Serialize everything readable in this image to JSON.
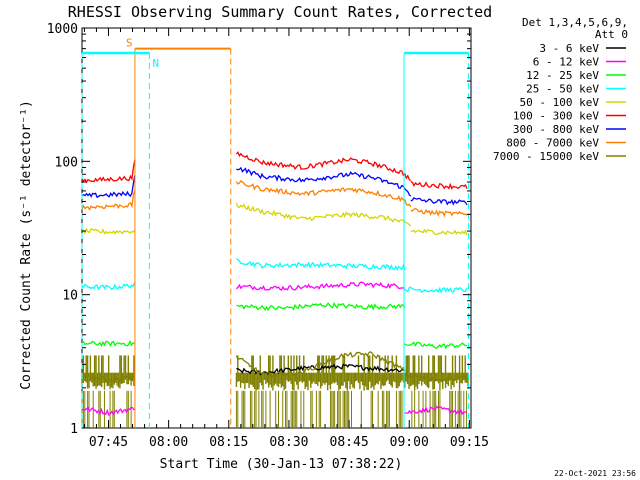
{
  "chart_data": {
    "type": "line",
    "title": "RHESSI Observing Summary Count Rates, Corrected",
    "xlabel": "Start Time (30-Jan-13 07:38:22)",
    "ylabel": "Corrected Count Rate (s⁻¹ detector⁻¹)",
    "y_scale": "log",
    "ylim": [
      1,
      1000
    ],
    "xlim_minutes": [
      0,
      97
    ],
    "x_ticks": [
      {
        "label": "07:45",
        "t": 6.6
      },
      {
        "label": "08:00",
        "t": 21.6
      },
      {
        "label": "08:15",
        "t": 36.6
      },
      {
        "label": "08:30",
        "t": 51.6
      },
      {
        "label": "08:45",
        "t": 66.6
      },
      {
        "label": "09:00",
        "t": 81.6
      },
      {
        "label": "09:15",
        "t": 96.6
      }
    ],
    "y_ticks": [
      {
        "label": "1",
        "v": 1
      },
      {
        "label": "10",
        "v": 10
      },
      {
        "label": "100",
        "v": 100
      },
      {
        "label": "1000",
        "v": 1000
      }
    ],
    "legend": {
      "placement": "right",
      "header": [
        "Det 1,3,4,5,6,9,",
        "Att 0"
      ]
    },
    "series": [
      {
        "name": "3 - 6 keV",
        "color": "#000000",
        "segments": [
          {
            "t": [
              38.5,
              45,
              55,
              66,
              80.5
            ],
            "v": [
              2.7,
              2.6,
              2.8,
              2.9,
              2.7
            ]
          }
        ]
      },
      {
        "name": "6 - 12 keV",
        "color": "#ff00ff",
        "segments": [
          {
            "t": [
              0,
              7,
              13
            ],
            "v": [
              1.4,
              1.3,
              1.4
            ]
          },
          {
            "t": [
              38.5,
              50,
              61,
              70,
              80.5
            ],
            "v": [
              11.5,
              11.2,
              11.6,
              12.0,
              11.5
            ]
          },
          {
            "t": [
              80.5,
              88,
              96
            ],
            "v": [
              1.3,
              1.4,
              1.3
            ]
          }
        ]
      },
      {
        "name": "12 - 25 keV",
        "color": "#00ff00",
        "segments": [
          {
            "t": [
              0,
              7,
              13.1
            ],
            "v": [
              4.3,
              4.3,
              4.3
            ]
          },
          {
            "t": [
              38.5,
              50,
              60,
              70,
              80.5
            ],
            "v": [
              8.2,
              7.9,
              8.4,
              8.1,
              8.2
            ]
          },
          {
            "t": [
              80.5,
              88,
              96
            ],
            "v": [
              4.3,
              4.1,
              4.2
            ]
          }
        ]
      },
      {
        "name": "25 - 50 keV",
        "color": "#00ffff",
        "segments": [
          {
            "t": [
              0,
              7,
              13.1
            ],
            "v": [
              11.5,
              11.3,
              11.8
            ]
          },
          {
            "t": [
              38.5,
              45,
              55,
              65,
              75,
              80.5
            ],
            "v": [
              18,
              16.5,
              16.8,
              16.5,
              16.2,
              16
            ]
          },
          {
            "t": [
              80.5,
              88,
              96
            ],
            "v": [
              11,
              10.8,
              10.9
            ]
          }
        ]
      },
      {
        "name": "50 - 100 keV",
        "color": "#d6d600",
        "segments": [
          {
            "t": [
              0,
              7,
              13.1
            ],
            "v": [
              30,
              29.5,
              30
            ]
          },
          {
            "t": [
              38.5,
              45,
              55,
              67,
              75,
              80,
              82
            ],
            "v": [
              47,
              42,
              37,
              40,
              38,
              35,
              33
            ]
          },
          {
            "t": [
              82,
              88,
              96
            ],
            "v": [
              30,
              29.5,
              29
            ]
          }
        ]
      },
      {
        "name": "100 - 300 keV",
        "color": "#ff0000",
        "segments": [
          {
            "t": [
              0,
              6,
              12.5,
              13.2
            ],
            "v": [
              72,
              73,
              75,
              100
            ]
          },
          {
            "t": [
              38.5,
              45,
              55,
              67,
              72,
              80,
              82
            ],
            "v": [
              115,
              98,
              90,
              103,
              97,
              82,
              72
            ]
          },
          {
            "t": [
              82,
              88,
              96
            ],
            "v": [
              68,
              66,
              64
            ]
          }
        ]
      },
      {
        "name": "300 - 800 keV",
        "color": "#0000ff",
        "segments": [
          {
            "t": [
              0,
              6,
              12.5,
              13.2
            ],
            "v": [
              55,
              56,
              57,
              78
            ]
          },
          {
            "t": [
              38.5,
              45,
              55,
              67,
              72,
              80,
              82
            ],
            "v": [
              90,
              77,
              72,
              80,
              76,
              64,
              56
            ]
          },
          {
            "t": [
              82,
              88,
              96
            ],
            "v": [
              52,
              50,
              49
            ]
          }
        ]
      },
      {
        "name": "800 - 7000 keV",
        "color": "#ff8000",
        "segments": [
          {
            "t": [
              0,
              6,
              12.5,
              13.2
            ],
            "v": [
              45,
              46,
              47,
              62
            ]
          },
          {
            "t": [
              38.5,
              45,
              55,
              67,
              72,
              80,
              82
            ],
            "v": [
              70,
              62,
              57,
              62,
              59,
              52,
              46
            ]
          },
          {
            "t": [
              82,
              88,
              96
            ],
            "v": [
              43,
              41,
              40
            ]
          }
        ]
      },
      {
        "name": "7000 - 15000 keV",
        "color": "#808000",
        "segments": [
          {
            "t": [
              0,
              7,
              13.1
            ],
            "v": [
              2.5,
              2.3,
              2.4
            ]
          },
          {
            "t": [
              38.5,
              45,
              55,
              65,
              72,
              80.5
            ],
            "v": [
              3.4,
              2.5,
              2.6,
              3.5,
              3.6,
              2.7
            ]
          },
          {
            "t": [
              80.5,
              88,
              96
            ],
            "v": [
              2.5,
              2.3,
              2.4
            ]
          }
        ]
      }
    ],
    "annotations": {
      "saa": {
        "label": "S",
        "color": "#ff8000",
        "t_start": 13.2,
        "t_end": 37.1,
        "v": 700
      },
      "night": [
        {
          "label": "N",
          "color": "#00ffff",
          "t_start": 0,
          "t_end": 16.8,
          "v": 650
        },
        {
          "label": "",
          "color": "#00ffff",
          "t_start": 80.3,
          "t_end": 96.4,
          "v": 650
        }
      ]
    },
    "timestamp": "22-Oct-2021 23:56"
  }
}
